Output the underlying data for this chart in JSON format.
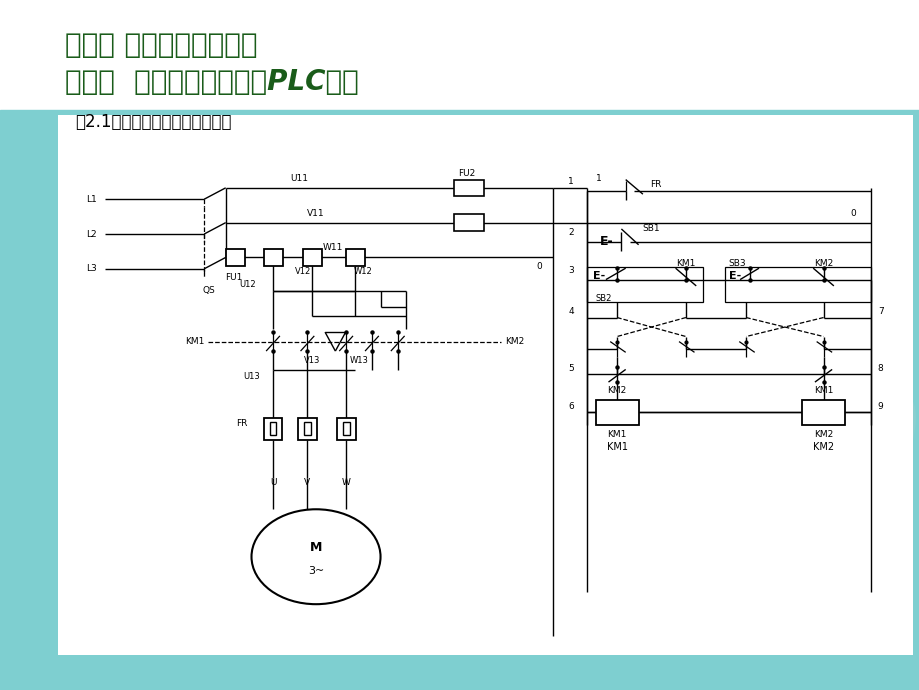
{
  "bg_teal": "#7ecfd0",
  "bg_white": "#ffffff",
  "title1": "模块二 基本控制指令应用",
  "title2": "任务一  电机正反转线路的PLC控制",
  "title_color": "#1a5c1a",
  "subtitle": "图2.1双重联锁的正反转控制电路",
  "line_color": "#000000",
  "watermark_color": "#9ecfcf"
}
